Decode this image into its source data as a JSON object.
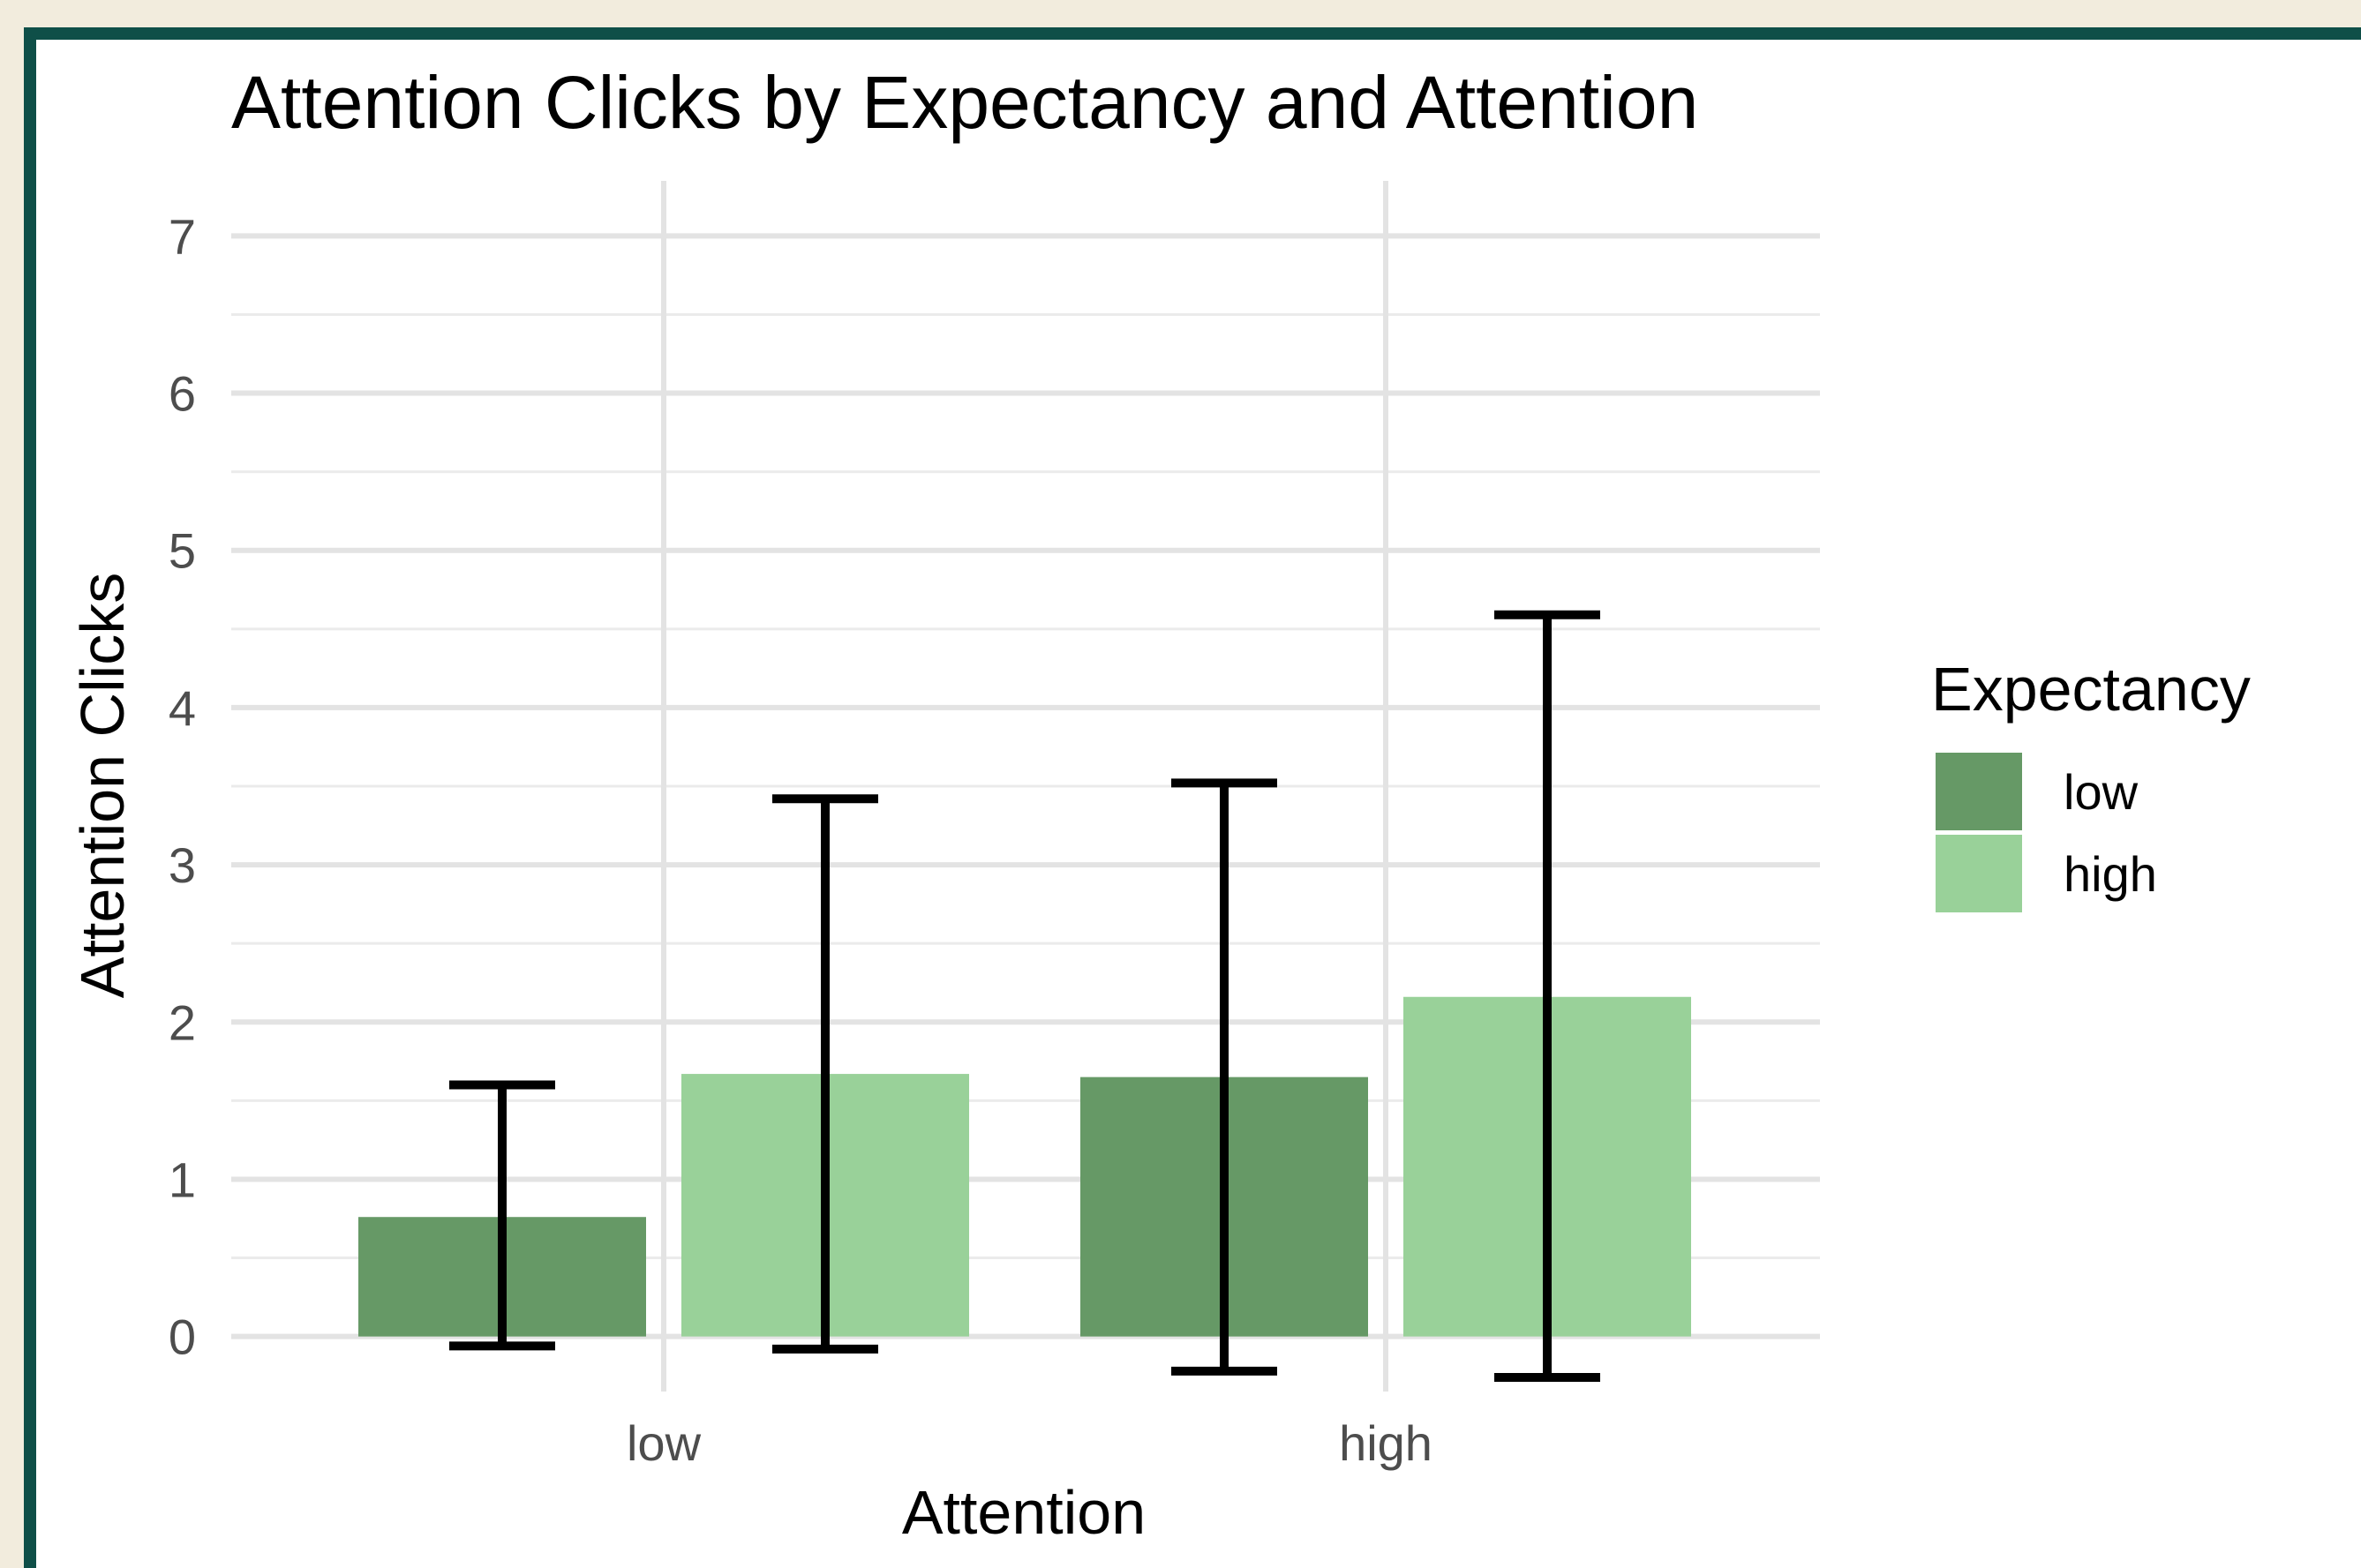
{
  "chart_data": {
    "type": "bar",
    "title": "Attention Clicks by Expectancy and Attention",
    "xlabel": "Attention",
    "ylabel": "Attention Clicks",
    "categories": [
      "low",
      "high"
    ],
    "ylim": [
      -0.35,
      7.35
    ],
    "yticks": [
      0,
      1,
      2,
      3,
      4,
      5,
      6,
      7
    ],
    "grid": true,
    "legend": {
      "title": "Expectancy",
      "position": "right"
    },
    "series": [
      {
        "name": "low",
        "color": "#669966",
        "values": [
          0.76,
          1.65
        ],
        "error_low": [
          -0.06,
          -0.22
        ],
        "error_high": [
          1.6,
          3.52
        ]
      },
      {
        "name": "high",
        "color": "#99d199",
        "values": [
          1.67,
          2.16
        ],
        "error_low": [
          -0.08,
          -0.26
        ],
        "error_high": [
          3.42,
          4.59
        ]
      }
    ]
  }
}
